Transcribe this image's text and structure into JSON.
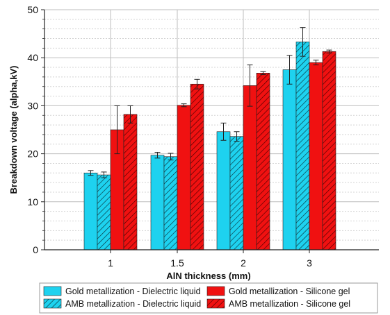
{
  "chart_data": {
    "type": "bar",
    "xlabel": "AlN thickness (mm)",
    "ylabel": "Breakdown voltage (alpha,kV)",
    "ylim": [
      0,
      50
    ],
    "yticks": [
      0,
      10,
      20,
      30,
      40,
      50
    ],
    "categories": [
      "1",
      "1.5",
      "2",
      "3"
    ],
    "grid": "vertical and horizontal dotted",
    "legend_position": "bottom",
    "series": [
      {
        "name": "Gold metallization - Dielectric liquid",
        "color": "#1ed2ef",
        "hatch": false,
        "values": [
          16.0,
          19.7,
          24.6,
          37.5
        ],
        "errors": [
          0.5,
          0.6,
          1.8,
          3.0
        ]
      },
      {
        "name": "AMB metallization - Dielectric liquid",
        "color": "#1ed2ef",
        "hatch": true,
        "values": [
          15.6,
          19.4,
          23.6,
          43.3
        ],
        "errors": [
          0.6,
          0.7,
          1.0,
          3.0
        ]
      },
      {
        "name": "Gold metallization - Silicone gel",
        "color": "#f01111",
        "hatch": false,
        "values": [
          25.0,
          30.1,
          34.2,
          39.0
        ],
        "errors": [
          5.0,
          0.3,
          4.3,
          0.5
        ]
      },
      {
        "name": "AMB metallization - Silicone gel",
        "color": "#f01111",
        "hatch": true,
        "values": [
          28.2,
          34.5,
          36.8,
          41.3
        ],
        "errors": [
          1.8,
          1.0,
          0.3,
          0.3
        ]
      }
    ]
  }
}
